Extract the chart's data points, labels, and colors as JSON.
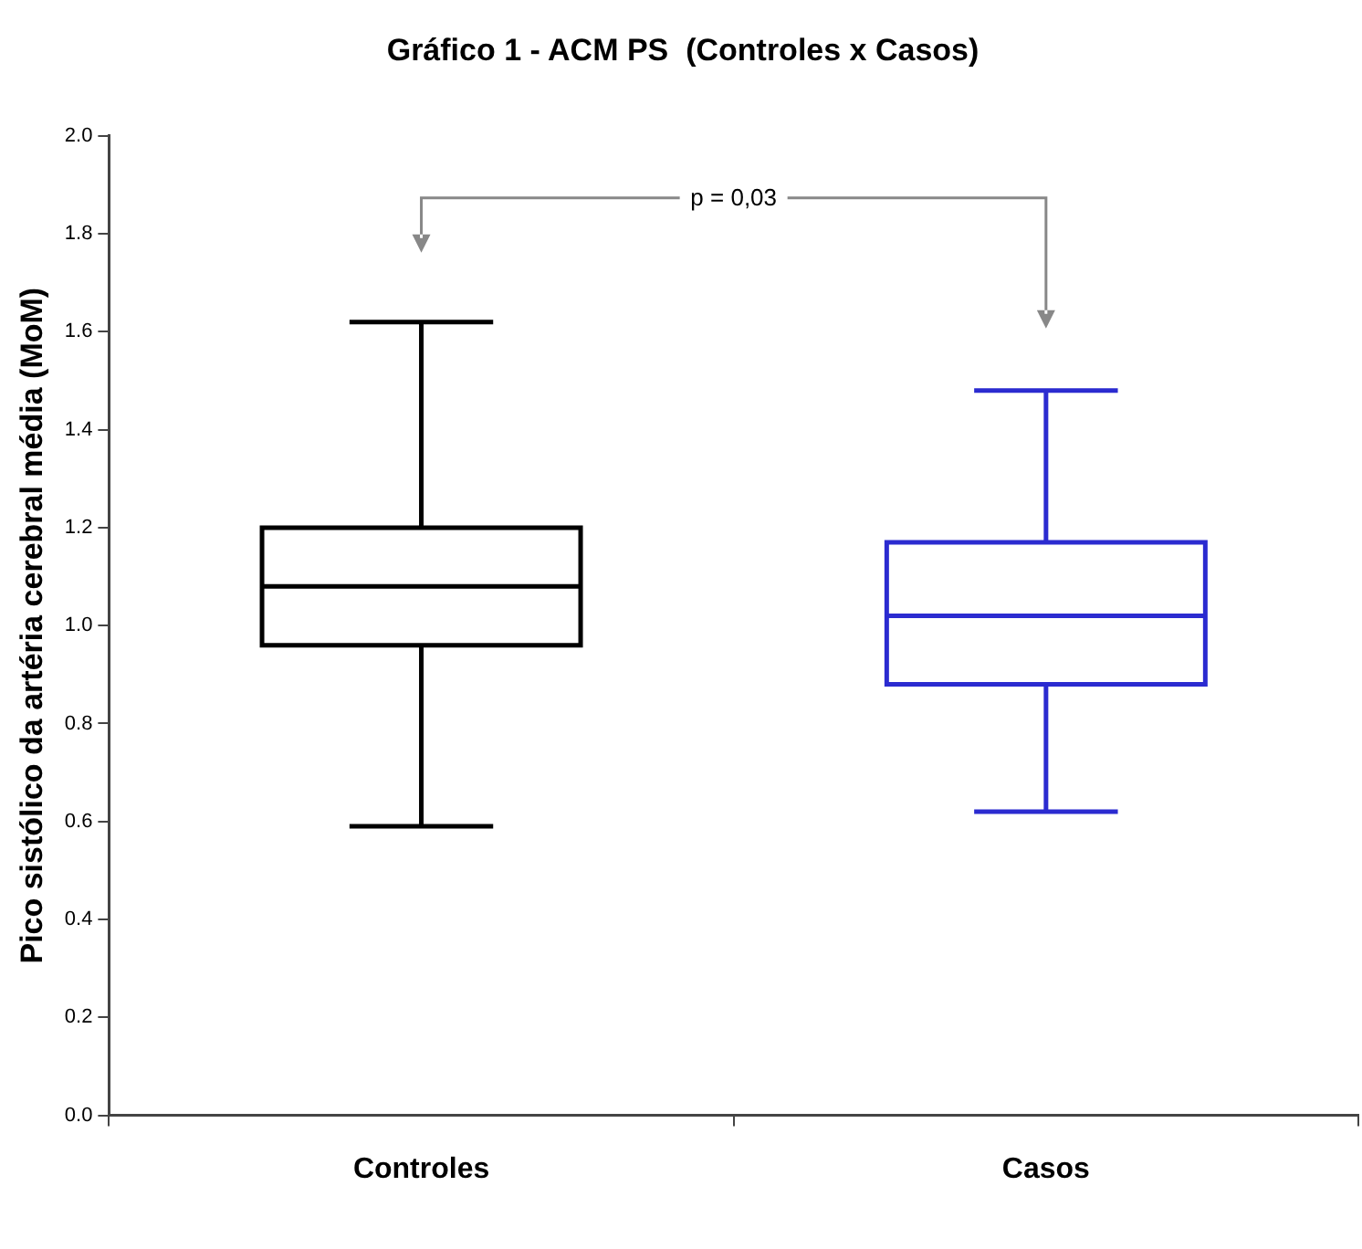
{
  "chart_data": {
    "type": "box",
    "title": "Gráfico 1 - ACM PS  (Controles x Casos)",
    "ylabel": "Pico sistólico da artéria cerebral média (MoM)",
    "categories": [
      "Controles",
      "Casos"
    ],
    "boxes": [
      {
        "low": 0.59,
        "q1": 0.96,
        "median": 1.08,
        "q3": 1.2,
        "high": 1.62
      },
      {
        "low": 0.62,
        "q1": 0.88,
        "median": 1.02,
        "q3": 1.17,
        "high": 1.48
      }
    ],
    "colors": [
      "#000000",
      "#2b2bd0"
    ],
    "ylim": [
      0,
      2
    ],
    "yticks": [
      {
        "value": 0,
        "label": "0.0"
      },
      {
        "value": 0.2,
        "label": "0.2"
      },
      {
        "value": 0.4,
        "label": "0.4"
      },
      {
        "value": 0.6,
        "label": "0.6"
      },
      {
        "value": 0.8,
        "label": "0.8"
      },
      {
        "value": 1,
        "label": "1.0"
      },
      {
        "value": 1.2,
        "label": "1.2"
      },
      {
        "value": 1.4,
        "label": "1.4"
      },
      {
        "value": 1.6,
        "label": "1.6"
      },
      {
        "value": 1.8,
        "label": "1.8"
      },
      {
        "value": 2,
        "label": "2.0"
      }
    ],
    "annotations": [
      "p = 0,03"
    ],
    "grid": false,
    "legend": false
  }
}
